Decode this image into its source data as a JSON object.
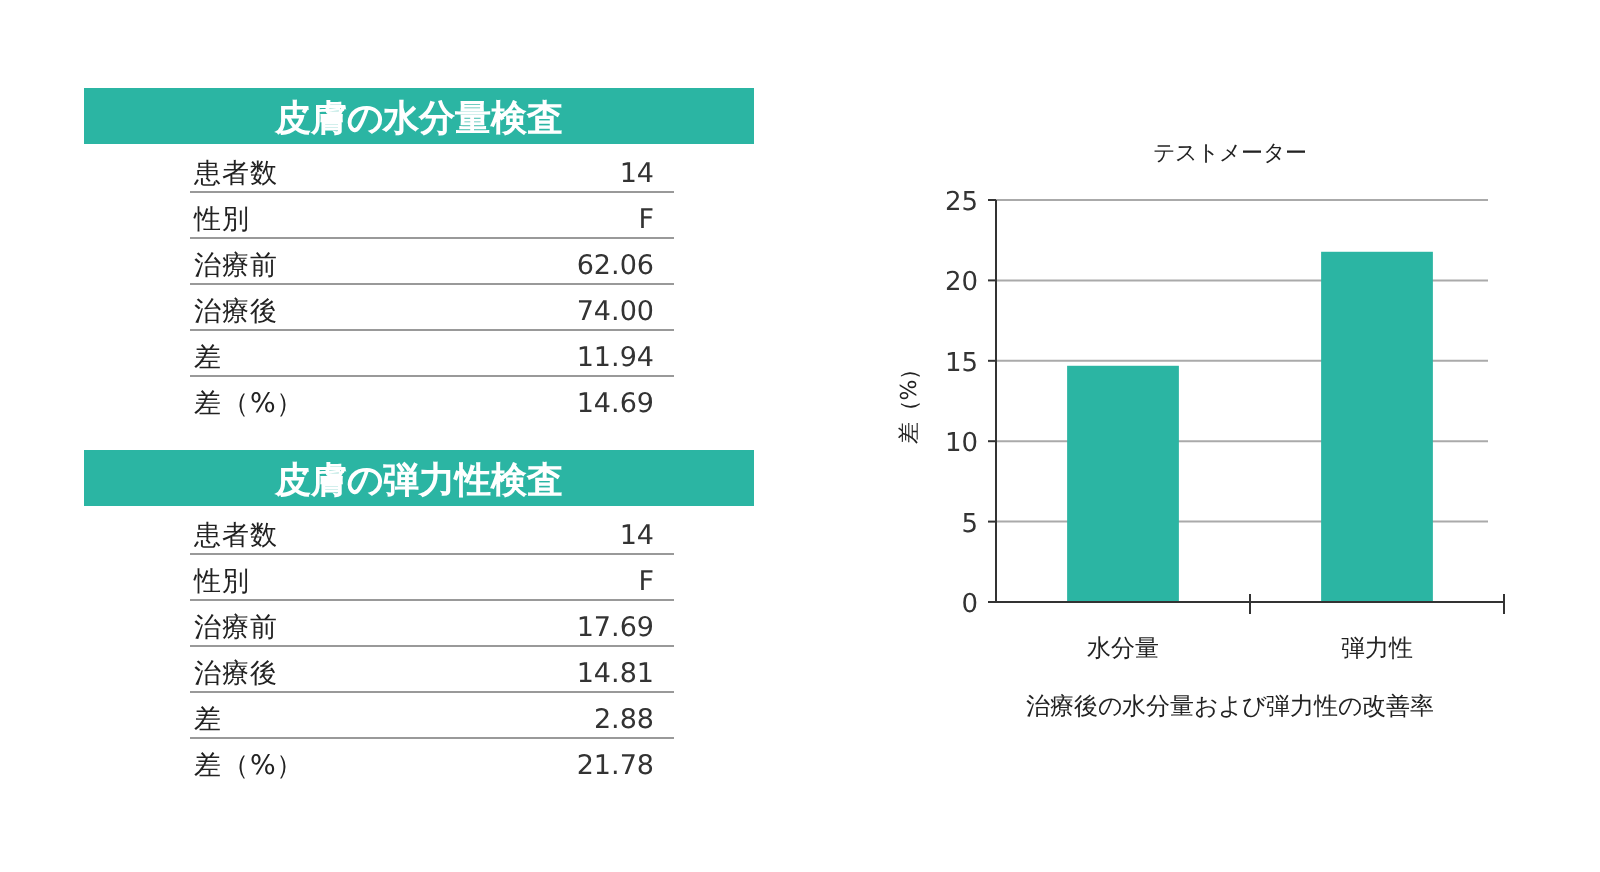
{
  "chart_data": [
    {
      "type": "other",
      "title": "皮膚の水分量検査",
      "color": "#2bb5a3",
      "annotations": [
        "患者数",
        "14",
        "性別",
        "F",
        "治療前",
        "62.06",
        "治療後",
        "74.00",
        "差",
        "11.94",
        "差（%）",
        "14.69"
      ]
    },
    {
      "type": "other",
      "title": "皮膚の弾力性検査",
      "color": "#2bb5a3",
      "annotations": [
        "患者数",
        "14",
        "性別",
        "F",
        "治療前",
        "17.69",
        "治療後",
        "14.81",
        "差",
        "2.88",
        "差（%）",
        "21.78"
      ]
    },
    {
      "type": "bar",
      "title": "テストメーター",
      "ylabel": "差（%）",
      "xlabel": "治療後の水分量および弾力性の改善率",
      "categories": [
        "水分量",
        "弾力性"
      ],
      "values": [
        14.69,
        21.78
      ],
      "color": "#2bb5a3",
      "ylim": [
        0,
        25
      ],
      "yticks": [
        0,
        5,
        10,
        15,
        20,
        25
      ],
      "grid": "y"
    }
  ]
}
